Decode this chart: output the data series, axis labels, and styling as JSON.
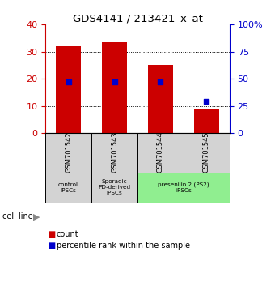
{
  "title": "GDS4141 / 213421_x_at",
  "samples": [
    "GSM701542",
    "GSM701543",
    "GSM701544",
    "GSM701545"
  ],
  "counts": [
    32,
    33.5,
    25,
    9
  ],
  "percentile_ranks": [
    47.5,
    47.5,
    47.5,
    29
  ],
  "bar_color": "#cc0000",
  "dot_color": "#0000cc",
  "ylim_left": [
    0,
    40
  ],
  "ylim_right": [
    0,
    100
  ],
  "left_ticks": [
    0,
    10,
    20,
    30,
    40
  ],
  "right_ticks": [
    0,
    25,
    50,
    75,
    100
  ],
  "right_tick_labels": [
    "0",
    "25",
    "50",
    "75",
    "100%"
  ],
  "groups": [
    {
      "label": "control\nIPSCs",
      "col_indices": [
        0
      ],
      "color": "#d3d3d3"
    },
    {
      "label": "Sporadic\nPD-derived\niPSCs",
      "col_indices": [
        1
      ],
      "color": "#d3d3d3"
    },
    {
      "label": "presenilin 2 (PS2)\niPSCs",
      "col_indices": [
        2,
        3
      ],
      "color": "#90ee90"
    }
  ],
  "legend_count_label": "count",
  "legend_pct_label": "percentile rank within the sample",
  "cell_line_label": "cell line",
  "bar_width": 0.55,
  "gridline_color": "#000000",
  "hgrid_ticks": [
    10,
    20,
    30
  ]
}
